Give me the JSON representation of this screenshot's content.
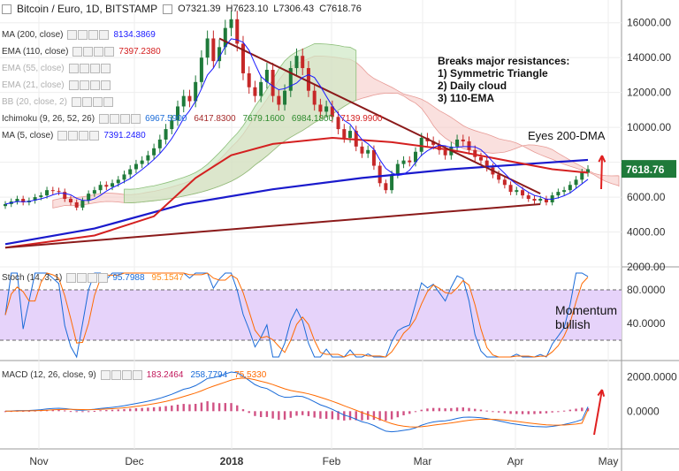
{
  "header": {
    "symbol": "Bitcoin / Euro, 1D, BITSTAMP",
    "open": "O7321.39",
    "high": "H7623.10",
    "low": "L7306.43",
    "close": "C7618.76"
  },
  "indicators": [
    {
      "label": "MA (200, close)",
      "values": [
        {
          "text": "8134.3869",
          "color": "#1a1aff"
        }
      ]
    },
    {
      "label": "EMA (110, close)",
      "values": [
        {
          "text": "7397.2380",
          "color": "#d42020"
        }
      ]
    },
    {
      "label": "EMA (55, close)",
      "values": []
    },
    {
      "label": "EMA (21, close)",
      "values": []
    },
    {
      "label": "BB (20, close, 2)",
      "values": []
    },
    {
      "label": "Ichimoku (9, 26, 52, 26)",
      "values": [
        {
          "text": "6967.5900",
          "color": "#1a6bd8"
        },
        {
          "text": "6417.8300",
          "color": "#a52a2a"
        },
        {
          "text": "7679.1600",
          "color": "#2e8b2e"
        },
        {
          "text": "6984.1800",
          "color": "#2e8b2e"
        },
        {
          "text": "7139.9900",
          "color": "#d42020"
        }
      ]
    },
    {
      "label": "MA (5, close)",
      "values": [
        {
          "text": "7391.2480",
          "color": "#1a1aff"
        }
      ]
    }
  ],
  "stoch_header": {
    "label": "Stoch (14, 3, 1)",
    "values": [
      {
        "text": "95.7988",
        "color": "#1a6bd8"
      },
      {
        "text": "95.1547",
        "color": "#ff8c1a"
      }
    ]
  },
  "macd_header": {
    "label": "MACD (12, 26, close, 9)",
    "values": [
      {
        "text": "183.2464",
        "color": "#c2185b"
      },
      {
        "text": "258.7794",
        "color": "#1a6bd8"
      },
      {
        "text": "75.5330",
        "color": "#ff6a00"
      }
    ]
  },
  "annotations": {
    "resistances_title": "Breaks major resistances:",
    "resistances_1": "1) Symmetric Triangle",
    "resistances_2": "2) Daily cloud",
    "resistances_3": "3) 110-EMA",
    "dma_note": "Eyes 200-DMA",
    "momentum_1": "Momentum",
    "momentum_2": "bullish"
  },
  "chart_data": {
    "type": "candlestick",
    "x_labels": [
      "Nov",
      "Dec",
      "2018",
      "Feb",
      "Mar",
      "Apr",
      "May"
    ],
    "price_axis_ticks": [
      "16000.00",
      "14000.00",
      "12000.00",
      "10000.00",
      "6000.00",
      "4000.00",
      "2000.00"
    ],
    "ylim": [
      2000,
      17000
    ],
    "last_price": "7618.76",
    "close_series": [
      5600,
      5750,
      5900,
      5700,
      5800,
      6000,
      6100,
      6400,
      6350,
      6300,
      5900,
      5700,
      5400,
      5800,
      6200,
      6400,
      6700,
      6600,
      6800,
      7000,
      7300,
      7600,
      7900,
      8100,
      8400,
      8800,
      9300,
      9900,
      10400,
      11200,
      11800,
      11500,
      12600,
      14000,
      15100,
      13800,
      14600,
      15700,
      16200,
      14800,
      13100,
      12300,
      11800,
      12600,
      13300,
      11800,
      11300,
      12100,
      13400,
      14100,
      13400,
      12100,
      11300,
      10900,
      11200,
      10600,
      9900,
      9400,
      9800,
      8900,
      8500,
      8700,
      7800,
      6800,
      6400,
      7300,
      7900,
      8100,
      8000,
      8600,
      9400,
      9200,
      9000,
      8700,
      8400,
      8900,
      9300,
      9200,
      8700,
      8300,
      8100,
      7700,
      7300,
      7000,
      6700,
      6300,
      6400,
      6100,
      5900,
      5800,
      5900,
      5700,
      6100,
      6300,
      6400,
      6700,
      7000,
      7400,
      7600
    ],
    "series": [
      {
        "name": "MA (200, close)",
        "points": [
          [
            0,
            3300
          ],
          [
            15,
            4200
          ],
          [
            30,
            5600
          ],
          [
            45,
            6450
          ],
          [
            60,
            7100
          ],
          [
            75,
            7600
          ],
          [
            90,
            7950
          ],
          [
            98,
            8134
          ]
        ]
      },
      {
        "name": "EMA (110, close)",
        "points": [
          [
            0,
            3100
          ],
          [
            15,
            3800
          ],
          [
            25,
            4900
          ],
          [
            32,
            7100
          ],
          [
            38,
            8400
          ],
          [
            45,
            9050
          ],
          [
            55,
            9400
          ],
          [
            65,
            9150
          ],
          [
            75,
            8700
          ],
          [
            85,
            8050
          ],
          [
            92,
            7600
          ],
          [
            98,
            7397
          ]
        ]
      },
      {
        "name": "Triangle upper",
        "points": [
          [
            36,
            15100
          ],
          [
            90,
            6200
          ]
        ]
      },
      {
        "name": "Triangle lower",
        "points": [
          [
            0,
            3100
          ],
          [
            90,
            5600
          ]
        ]
      }
    ],
    "stoch": {
      "ylim": [
        0,
        100
      ],
      "ticks": [
        "80.0000",
        "40.0000"
      ],
      "k_last": 95.7988,
      "d_last": 95.1547
    },
    "macd": {
      "ylim": [
        -2000,
        2600
      ],
      "ticks": [
        "2000.0000",
        "0.0000"
      ],
      "macd_last": 258.7794,
      "signal_last": 75.533,
      "hist_last": 183.2464
    }
  }
}
